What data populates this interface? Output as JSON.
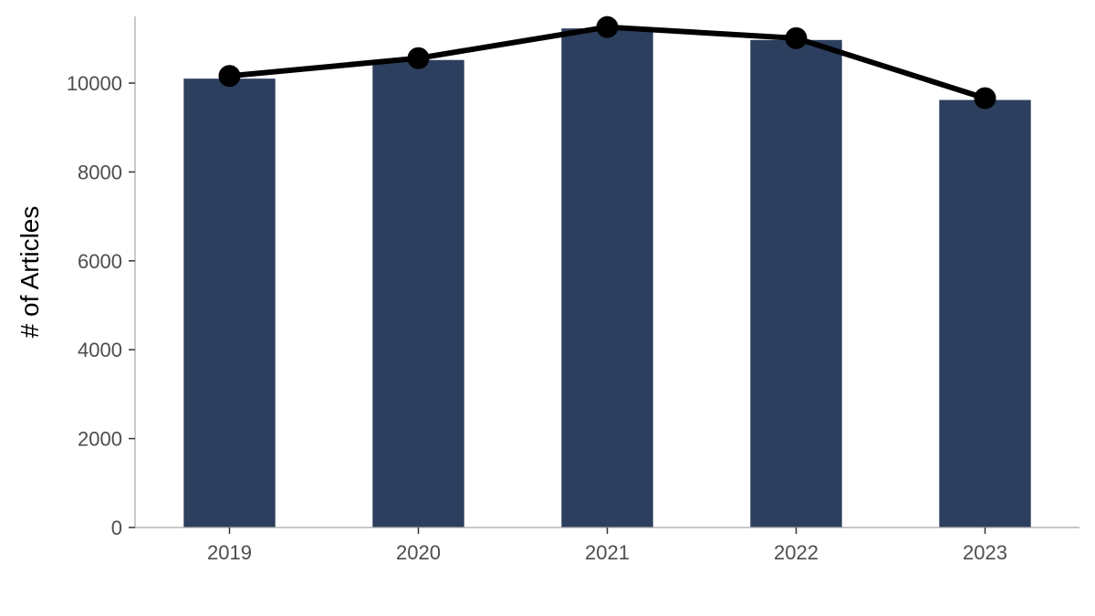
{
  "chart_data": {
    "type": "bar",
    "categories": [
      "2019",
      "2020",
      "2021",
      "2022",
      "2023"
    ],
    "series": [
      {
        "type": "bar",
        "values": [
          10100,
          10520,
          11230,
          10970,
          9620
        ]
      },
      {
        "type": "line",
        "values": [
          10160,
          10560,
          11260,
          11010,
          9660
        ]
      }
    ],
    "title": "",
    "xlabel": "",
    "ylabel": "# of Articles",
    "ylim": [
      0,
      11500
    ],
    "yticks": [
      "0",
      "2000",
      "4000",
      "6000",
      "8000",
      "10000"
    ],
    "grid": false,
    "legend": "none",
    "colors": {
      "bar": "#2d3f5f",
      "line": "#000000",
      "axis": "#a6a6a6"
    }
  }
}
